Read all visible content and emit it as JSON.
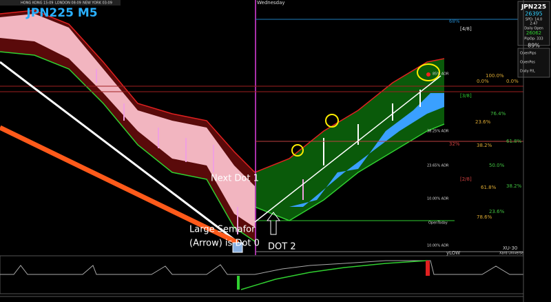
{
  "header": {
    "symbol": "JPN225 M5",
    "sessions": [
      "HONG KONG 15:09",
      "LONDON 08:09",
      "NEW YORK 03:09"
    ]
  },
  "day_label": "Wednesday",
  "annotations": [
    "Next Dot 1",
    "Large Semafor",
    "(Arrow) is Dot 0",
    "DOT 2"
  ],
  "adr_levels": [
    "85% ADR",
    "38.25% ADR",
    "23.65% ADR",
    "10.00% ADR",
    "10.00% ADR"
  ],
  "levels": [
    "OpenToday",
    "yLOW",
    "XU-30",
    "Xard Universe"
  ],
  "pct": [
    "68%",
    "32%"
  ],
  "murrey": [
    "[4/8]",
    "[3/8]",
    "[2/8]"
  ],
  "fib": [
    "100.0%",
    "0.0%",
    "0.0%",
    "76.4%",
    "23.6%",
    "38.2%",
    "61.8%",
    "50.0%",
    "61.8%",
    "38.2%",
    "23.6%",
    "78.6%"
  ],
  "panel": {
    "symbol": "JPN225",
    "price": "26395",
    "spread": "SPD: 14.0",
    "time": "2:47",
    "daily_open_label": "Daily Open",
    "daily_open": "26062",
    "pip_op": "PipOp: 333",
    "adr_pct": "89%",
    "rows": [
      "OpenPips",
      "OpenPos",
      "Daily P/L"
    ]
  }
}
